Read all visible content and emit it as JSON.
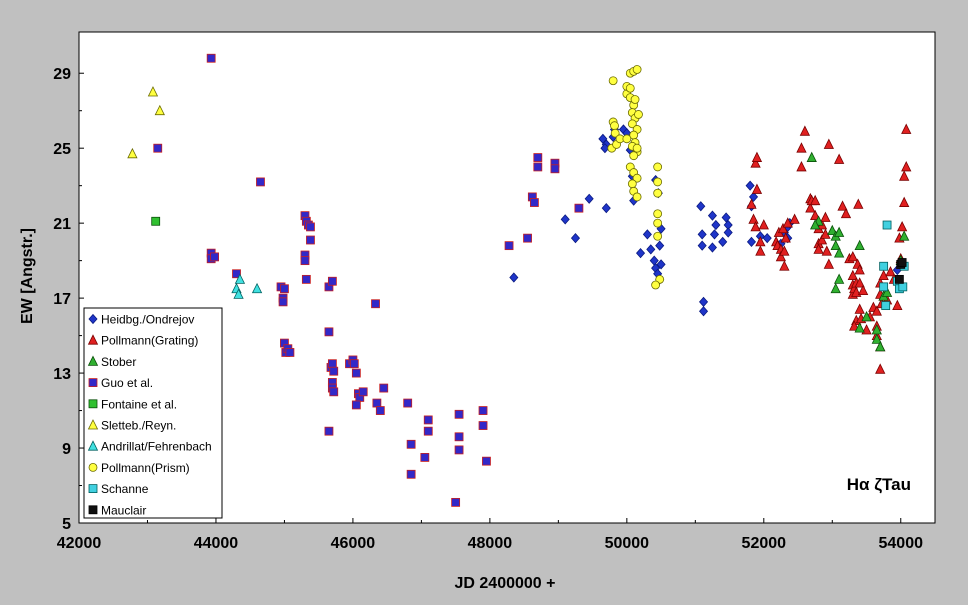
{
  "chart_data": {
    "type": "scatter",
    "title": "",
    "annotation": "Hα ζTau",
    "xlabel": "JD 2400000 +",
    "ylabel": "EW [Angstr.]",
    "xlim": [
      42000,
      54500
    ],
    "ylim": [
      5,
      31.2
    ],
    "xticks": [
      42000,
      44000,
      46000,
      48000,
      50000,
      52000,
      54000
    ],
    "yticks": [
      5,
      9,
      13,
      17,
      21,
      25,
      29
    ],
    "legend_position": "bottom-left",
    "colors": {
      "background": "#c0c0c0",
      "plot_area": "#ffffff"
    },
    "series": [
      {
        "name": "Heidbg./Ondrejov",
        "marker": "diamond",
        "color": "#1f35c8",
        "stroke": "#0a1a80",
        "points": [
          [
            48350,
            18.1
          ],
          [
            49100,
            21.2
          ],
          [
            49250,
            20.2
          ],
          [
            49450,
            22.3
          ],
          [
            49700,
            21.8
          ],
          [
            49650,
            25.5
          ],
          [
            49700,
            25.2
          ],
          [
            49680,
            25.0
          ],
          [
            49800,
            25.6
          ],
          [
            49820,
            26.0
          ],
          [
            49950,
            26.0
          ],
          [
            50000,
            25.8
          ],
          [
            50050,
            24.9
          ],
          [
            50080,
            23.5
          ],
          [
            50100,
            22.2
          ],
          [
            50200,
            19.4
          ],
          [
            50300,
            20.4
          ],
          [
            50350,
            19.6
          ],
          [
            50400,
            19.0
          ],
          [
            50420,
            18.6
          ],
          [
            50450,
            18.3
          ],
          [
            50480,
            18.0
          ],
          [
            50500,
            18.8
          ],
          [
            50480,
            19.8
          ],
          [
            50500,
            20.7
          ],
          [
            50420,
            23.3
          ],
          [
            50460,
            22.6
          ],
          [
            51080,
            21.9
          ],
          [
            51100,
            20.4
          ],
          [
            51100,
            19.8
          ],
          [
            51120,
            16.8
          ],
          [
            51120,
            16.3
          ],
          [
            51250,
            21.4
          ],
          [
            51280,
            20.4
          ],
          [
            51250,
            19.7
          ],
          [
            51300,
            20.9
          ],
          [
            51400,
            20.0
          ],
          [
            51450,
            21.3
          ],
          [
            51480,
            20.9
          ],
          [
            51480,
            20.5
          ],
          [
            51800,
            23.0
          ],
          [
            51820,
            21.9
          ],
          [
            51850,
            22.4
          ],
          [
            51820,
            20.0
          ],
          [
            51950,
            20.3
          ],
          [
            52050,
            20.2
          ],
          [
            52250,
            19.9
          ],
          [
            52300,
            20.5
          ],
          [
            52350,
            20.8
          ],
          [
            52350,
            20.2
          ],
          [
            52380,
            21.0
          ],
          [
            53950,
            18.5
          ]
        ]
      },
      {
        "name": "Pollmann(Grating)",
        "marker": "triangle",
        "color": "#e02020",
        "stroke": "#7a0000",
        "points": [
          [
            51820,
            22.0
          ],
          [
            51850,
            21.2
          ],
          [
            51880,
            20.8
          ],
          [
            51880,
            24.2
          ],
          [
            51900,
            24.5
          ],
          [
            51900,
            22.8
          ],
          [
            51950,
            20.0
          ],
          [
            51950,
            19.5
          ],
          [
            52000,
            20.9
          ],
          [
            52180,
            20.0
          ],
          [
            52200,
            19.8
          ],
          [
            52220,
            20.5
          ],
          [
            52250,
            19.6
          ],
          [
            52250,
            19.2
          ],
          [
            52280,
            20.7
          ],
          [
            52300,
            19.5
          ],
          [
            52300,
            18.7
          ],
          [
            52320,
            20.2
          ],
          [
            52350,
            21.0
          ],
          [
            52450,
            21.2
          ],
          [
            52550,
            24.0
          ],
          [
            52550,
            25.0
          ],
          [
            52600,
            25.9
          ],
          [
            52680,
            22.3
          ],
          [
            52680,
            21.8
          ],
          [
            52700,
            22.2
          ],
          [
            52750,
            22.2
          ],
          [
            52750,
            21.4
          ],
          [
            52800,
            20.7
          ],
          [
            52800,
            19.9
          ],
          [
            52800,
            19.6
          ],
          [
            52850,
            20.1
          ],
          [
            52850,
            20.9
          ],
          [
            52900,
            21.3
          ],
          [
            52900,
            20.4
          ],
          [
            52920,
            19.5
          ],
          [
            52950,
            18.8
          ],
          [
            52950,
            25.2
          ],
          [
            53100,
            24.4
          ],
          [
            53150,
            21.9
          ],
          [
            53200,
            21.5
          ],
          [
            53250,
            19.1
          ],
          [
            53300,
            19.2
          ],
          [
            53300,
            18.2
          ],
          [
            53300,
            17.7
          ],
          [
            53300,
            17.2
          ],
          [
            53320,
            17.5
          ],
          [
            53350,
            17.8
          ],
          [
            53350,
            17.3
          ],
          [
            53370,
            18.8
          ],
          [
            53380,
            22.0
          ],
          [
            53400,
            18.5
          ],
          [
            53400,
            17.8
          ],
          [
            53350,
            15.8
          ],
          [
            53320,
            15.5
          ],
          [
            53400,
            16.4
          ],
          [
            53420,
            15.9
          ],
          [
            53450,
            17.4
          ],
          [
            53500,
            15.3
          ],
          [
            53550,
            16.0
          ],
          [
            53600,
            16.5
          ],
          [
            53650,
            15.5
          ],
          [
            53650,
            16.3
          ],
          [
            53650,
            15.0
          ],
          [
            53700,
            14.4
          ],
          [
            53700,
            17.2
          ],
          [
            53700,
            17.8
          ],
          [
            53720,
            16.7
          ],
          [
            53750,
            18.2
          ],
          [
            53750,
            17.1
          ],
          [
            53700,
            13.2
          ],
          [
            53800,
            16.9
          ],
          [
            53850,
            18.4
          ],
          [
            53900,
            18.0
          ],
          [
            53950,
            16.6
          ],
          [
            53980,
            20.2
          ],
          [
            54000,
            19.1
          ],
          [
            54000,
            18.8
          ],
          [
            54020,
            20.8
          ],
          [
            54050,
            22.1
          ],
          [
            54050,
            23.5
          ],
          [
            54080,
            24.0
          ],
          [
            54080,
            26.0
          ]
        ]
      },
      {
        "name": "Stober",
        "marker": "triangle",
        "color": "#30b030",
        "stroke": "#0a500a",
        "points": [
          [
            52700,
            24.5
          ],
          [
            52800,
            21.1
          ],
          [
            52750,
            20.9
          ],
          [
            53000,
            20.6
          ],
          [
            53050,
            20.3
          ],
          [
            53050,
            19.8
          ],
          [
            53100,
            20.5
          ],
          [
            53100,
            19.4
          ],
          [
            53100,
            18.0
          ],
          [
            53050,
            17.5
          ],
          [
            53400,
            19.8
          ],
          [
            53400,
            15.4
          ],
          [
            53500,
            16.0
          ],
          [
            53650,
            14.8
          ],
          [
            53700,
            14.4
          ],
          [
            53650,
            15.3
          ],
          [
            53750,
            17.1
          ],
          [
            53800,
            17.3
          ],
          [
            54000,
            19.0
          ],
          [
            54050,
            20.3
          ]
        ]
      },
      {
        "name": "Guo et al.",
        "marker": "square",
        "color": "#3228c8",
        "stroke": "#c81e1e",
        "points": [
          [
            43930,
            29.8
          ],
          [
            43150,
            25.0
          ],
          [
            43930,
            19.4
          ],
          [
            43930,
            19.1
          ],
          [
            43980,
            19.2
          ],
          [
            44300,
            18.3
          ],
          [
            44650,
            23.2
          ],
          [
            44950,
            17.6
          ],
          [
            44980,
            17.0
          ],
          [
            45000,
            17.5
          ],
          [
            44980,
            16.8
          ],
          [
            45000,
            14.6
          ],
          [
            45020,
            14.1
          ],
          [
            45050,
            14.3
          ],
          [
            45080,
            14.1
          ],
          [
            45300,
            21.4
          ],
          [
            45320,
            21.1
          ],
          [
            45350,
            20.9
          ],
          [
            45380,
            20.8
          ],
          [
            45380,
            20.1
          ],
          [
            45300,
            19.3
          ],
          [
            45300,
            19.0
          ],
          [
            45320,
            18.0
          ],
          [
            45650,
            17.6
          ],
          [
            45700,
            17.9
          ],
          [
            45650,
            15.2
          ],
          [
            45680,
            13.3
          ],
          [
            45700,
            13.5
          ],
          [
            45720,
            13.1
          ],
          [
            45700,
            12.5
          ],
          [
            45700,
            12.2
          ],
          [
            45720,
            12.0
          ],
          [
            45650,
            9.9
          ],
          [
            45950,
            13.5
          ],
          [
            46000,
            13.7
          ],
          [
            46020,
            13.5
          ],
          [
            46050,
            13.0
          ],
          [
            46080,
            11.9
          ],
          [
            46100,
            11.7
          ],
          [
            46050,
            11.3
          ],
          [
            46150,
            12.0
          ],
          [
            46330,
            16.7
          ],
          [
            46350,
            11.4
          ],
          [
            46400,
            11.0
          ],
          [
            46450,
            12.2
          ],
          [
            46800,
            11.4
          ],
          [
            46850,
            9.2
          ],
          [
            46850,
            7.6
          ],
          [
            47100,
            10.5
          ],
          [
            47100,
            9.9
          ],
          [
            47050,
            8.5
          ],
          [
            47500,
            6.1
          ],
          [
            47550,
            10.8
          ],
          [
            47550,
            9.6
          ],
          [
            47550,
            8.9
          ],
          [
            47900,
            11.0
          ],
          [
            47900,
            10.2
          ],
          [
            47950,
            8.3
          ],
          [
            48280,
            19.8
          ],
          [
            48550,
            20.2
          ],
          [
            48620,
            22.4
          ],
          [
            48650,
            22.1
          ],
          [
            48700,
            24.5
          ],
          [
            48700,
            24.0
          ],
          [
            48950,
            24.2
          ],
          [
            48950,
            23.9
          ],
          [
            49300,
            21.8
          ]
        ]
      },
      {
        "name": "Fontaine et al.",
        "marker": "square",
        "color": "#30c030",
        "stroke": "#0a500a",
        "points": [
          [
            43120,
            21.1
          ]
        ]
      },
      {
        "name": "Sletteb./Reyn.",
        "marker": "triangle",
        "color": "#ffff40",
        "stroke": "#6b6b00",
        "points": [
          [
            42780,
            24.7
          ],
          [
            43080,
            28.0
          ],
          [
            43180,
            27.0
          ]
        ]
      },
      {
        "name": "Andrillat/Fehrenbach",
        "marker": "triangle",
        "color": "#40e0e0",
        "stroke": "#006060",
        "points": [
          [
            44300,
            17.5
          ],
          [
            44350,
            18.0
          ],
          [
            44330,
            17.2
          ],
          [
            44600,
            17.5
          ]
        ]
      },
      {
        "name": "Pollmann(Prism)",
        "marker": "circle",
        "color": "#ffff40",
        "stroke": "#6b6b00",
        "points": [
          [
            49800,
            28.6
          ],
          [
            49800,
            26.4
          ],
          [
            49820,
            26.2
          ],
          [
            49830,
            25.8
          ],
          [
            49780,
            25.0
          ],
          [
            49850,
            25.2
          ],
          [
            49900,
            25.5
          ],
          [
            50000,
            27.9
          ],
          [
            50000,
            28.3
          ],
          [
            50050,
            29.0
          ],
          [
            50050,
            28.2
          ],
          [
            50100,
            29.1
          ],
          [
            50150,
            29.2
          ],
          [
            50050,
            27.7
          ],
          [
            50100,
            27.3
          ],
          [
            50080,
            26.9
          ],
          [
            50120,
            26.6
          ],
          [
            50080,
            26.3
          ],
          [
            50150,
            26.0
          ],
          [
            50100,
            25.7
          ],
          [
            50120,
            25.3
          ],
          [
            50080,
            25.1
          ],
          [
            50150,
            24.8
          ],
          [
            50100,
            24.6
          ],
          [
            50050,
            24.0
          ],
          [
            50100,
            23.7
          ],
          [
            50150,
            23.4
          ],
          [
            50080,
            23.1
          ],
          [
            50100,
            22.7
          ],
          [
            50150,
            22.4
          ],
          [
            50000,
            25.5
          ],
          [
            50120,
            27.6
          ],
          [
            50170,
            26.8
          ],
          [
            50150,
            25.0
          ],
          [
            50450,
            24.0
          ],
          [
            50450,
            23.2
          ],
          [
            50450,
            22.6
          ],
          [
            50450,
            21.5
          ],
          [
            50450,
            21.0
          ],
          [
            50450,
            20.3
          ],
          [
            50480,
            18.0
          ],
          [
            50420,
            17.7
          ]
        ]
      },
      {
        "name": "Schanne",
        "marker": "square",
        "color": "#40d0e0",
        "stroke": "#006060",
        "points": [
          [
            53750,
            18.7
          ],
          [
            53800,
            20.9
          ],
          [
            53780,
            16.6
          ],
          [
            53750,
            17.6
          ],
          [
            53950,
            17.9
          ],
          [
            53980,
            17.5
          ],
          [
            54030,
            17.6
          ],
          [
            54050,
            18.7
          ]
        ]
      },
      {
        "name": "Mauclair",
        "marker": "square",
        "color": "#101010",
        "stroke": "#000000",
        "points": [
          [
            53980,
            18.0
          ],
          [
            54000,
            18.8
          ],
          [
            54020,
            18.9
          ]
        ]
      }
    ]
  }
}
